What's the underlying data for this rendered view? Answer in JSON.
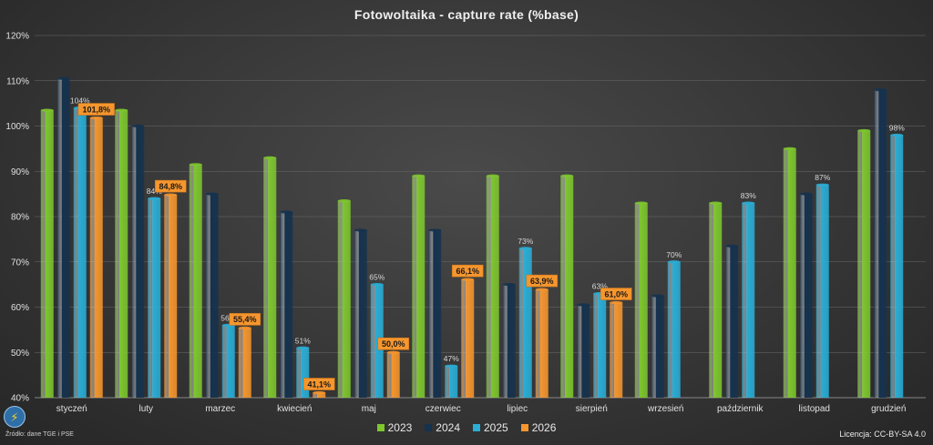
{
  "chart_data": {
    "type": "bar",
    "title": "Fotowoltaika - capture rate (%base)",
    "categories": [
      "styczeń",
      "luty",
      "marzec",
      "kwiecień",
      "maj",
      "czerwiec",
      "lipiec",
      "sierpień",
      "wrzesień",
      "październik",
      "listopad",
      "grudzień"
    ],
    "ylim": [
      40,
      120
    ],
    "yticks": [
      "40%",
      "50%",
      "60%",
      "70%",
      "80%",
      "90%",
      "100%",
      "110%",
      "120%"
    ],
    "grid": true,
    "legend_position": "bottom",
    "series": [
      {
        "name": "2023",
        "color": "#7ec72e",
        "values": [
          103.5,
          103.5,
          91.5,
          93,
          83.5,
          89,
          89,
          89,
          83,
          83,
          95,
          99
        ],
        "labels": null
      },
      {
        "name": "2024",
        "color": "#15324e",
        "values": [
          110.5,
          100,
          85,
          81,
          77,
          77,
          65,
          60.5,
          62.5,
          73.5,
          85,
          108
        ],
        "labels": null
      },
      {
        "name": "2025",
        "color": "#2aaed6",
        "values": [
          104,
          84,
          56,
          51,
          65,
          47,
          73,
          63,
          70,
          83,
          87,
          98
        ],
        "labels": [
          "104%",
          "84%",
          "56%",
          "51%",
          "65%",
          "47%",
          "73%",
          "63%",
          "70%",
          "83%",
          "87%",
          "98%"
        ]
      },
      {
        "name": "2026",
        "color": "#f6962e",
        "values": [
          101.8,
          84.8,
          55.4,
          41.1,
          50.0,
          66.1,
          63.9,
          61.0,
          null,
          null,
          null,
          null
        ],
        "labels": [
          "101,8%",
          "84,8%",
          "55,4%",
          "41,1%",
          "50,0%",
          "66,1%",
          "63,9%",
          "61,0%",
          null,
          null,
          null,
          null
        ]
      }
    ]
  },
  "footer": {
    "source": "Źródło: dane TGE i PSE",
    "license": "Licencja: CC-BY-SA 4.0",
    "logo_icon": "lightning-bolt-icon"
  }
}
